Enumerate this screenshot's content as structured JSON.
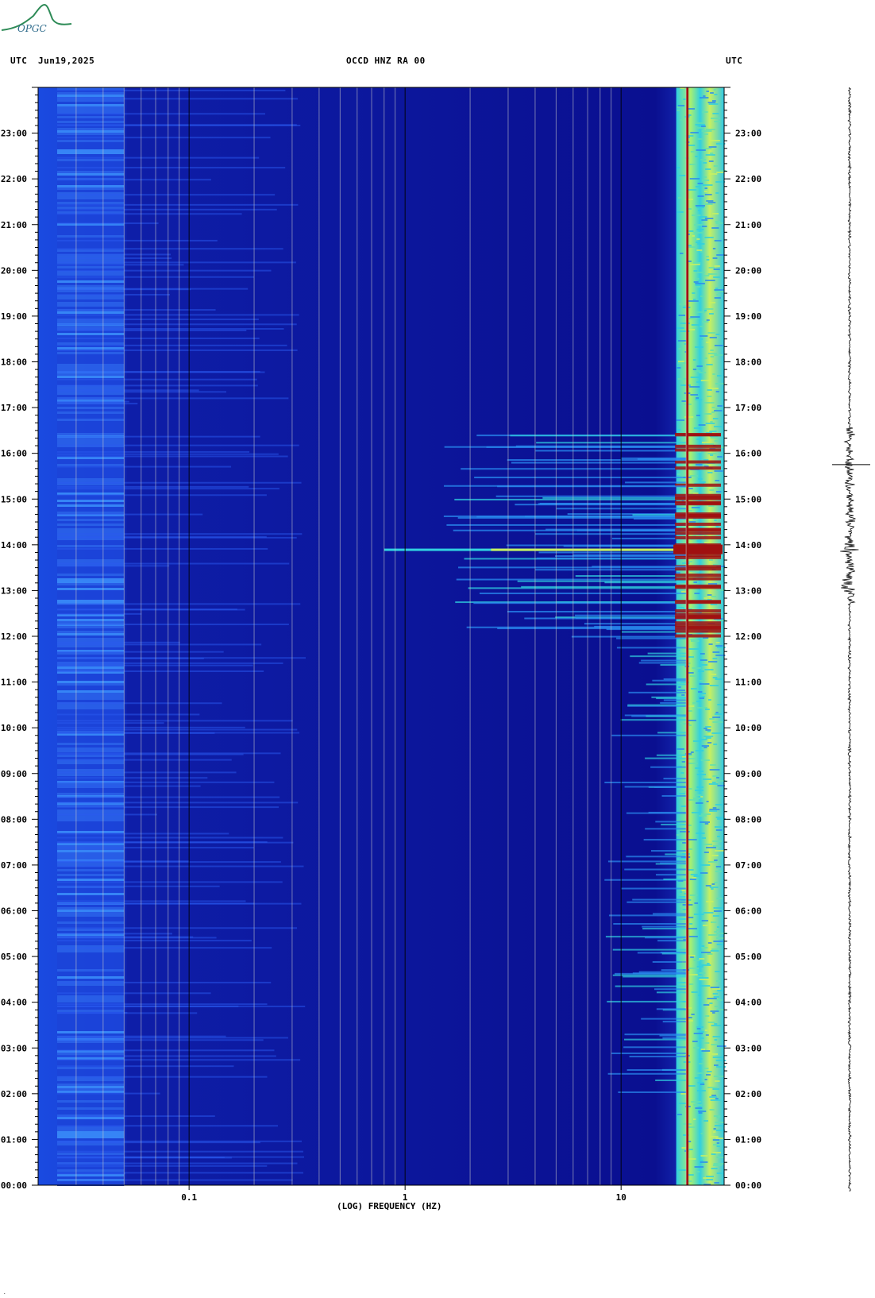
{
  "header": {
    "left_utc": "UTC",
    "date": "Jun19,2025",
    "station": "OCCD HNZ RA 00",
    "right_utc": "UTC"
  },
  "logo": {
    "text": "OPGC",
    "color": "#2e8b57"
  },
  "chart_data": {
    "type": "heatmap",
    "title": "OCCD HNZ RA 00",
    "xlabel": "(LOG) FREQUENCY (HZ)",
    "ylabel": "",
    "x_scale": "log",
    "xlim": [
      0.02,
      30
    ],
    "ylim_hours": [
      0,
      24
    ],
    "x_tick_labels": [
      {
        "value": 0.1,
        "label": "0.1"
      },
      {
        "value": 1,
        "label": "1"
      },
      {
        "value": 10,
        "label": "10"
      }
    ],
    "y_tick_labels": [
      "00:00",
      "01:00",
      "02:00",
      "03:00",
      "04:00",
      "05:00",
      "06:00",
      "07:00",
      "08:00",
      "09:00",
      "10:00",
      "11:00",
      "12:00",
      "13:00",
      "14:00",
      "15:00",
      "16:00",
      "17:00",
      "18:00",
      "19:00",
      "20:00",
      "21:00",
      "22:00",
      "23:00"
    ],
    "colormap": [
      "#0a0a8c",
      "#1a3cd8",
      "#2a8cf0",
      "#30d0e0",
      "#c8f060",
      "#f0e020",
      "#e07010",
      "#a01010"
    ],
    "strong_line_hz": 20,
    "activity_window_hours": [
      12.0,
      16.5
    ],
    "peak_event_hour": 13.9,
    "grid": true
  }
}
